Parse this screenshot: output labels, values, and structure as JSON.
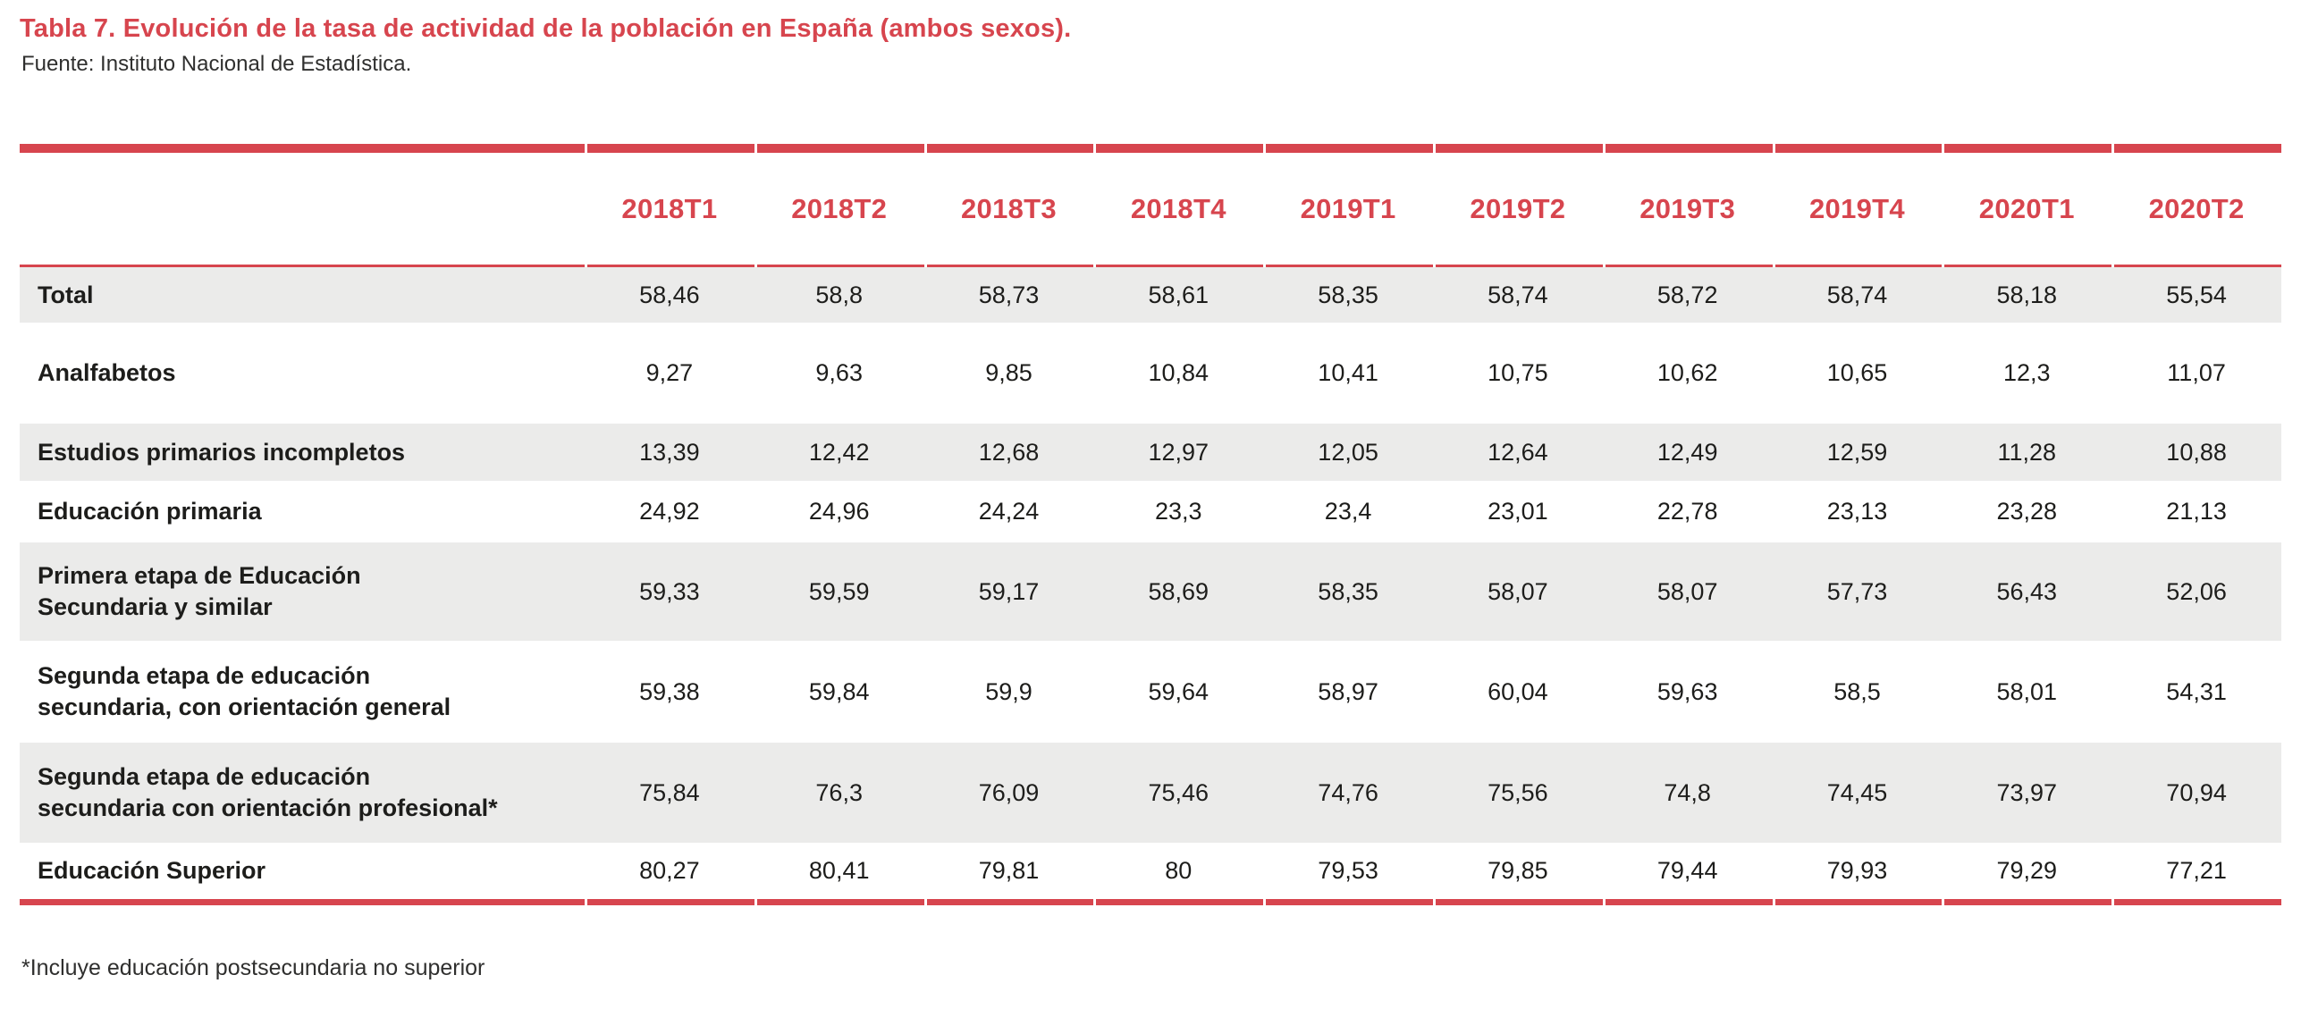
{
  "title": "Tabla 7. Evolución de la tasa de actividad de la población en España (ambos sexos).",
  "source": "Fuente: Instituto Nacional de Estadística.",
  "footnote": "*Incluye educación postsecundaria no superior",
  "colors": {
    "accent_red": "#d7454e",
    "row_stripe": "#ebebea",
    "text": "#1d1d1b"
  },
  "chart_data": {
    "type": "table",
    "title": "Evolución de la tasa de actividad de la población en España (ambos sexos)",
    "columns": [
      "2018T1",
      "2018T2",
      "2018T3",
      "2018T4",
      "2019T1",
      "2019T2",
      "2019T3",
      "2019T4",
      "2020T1",
      "2020T2"
    ],
    "rows": [
      {
        "label": "Total",
        "values": [
          "58,46",
          "58,8",
          "58,73",
          "58,61",
          "58,35",
          "58,74",
          "58,72",
          "58,74",
          "58,18",
          "55,54"
        ]
      },
      {
        "label": "Analfabetos",
        "values": [
          "9,27",
          "9,63",
          "9,85",
          "10,84",
          "10,41",
          "10,75",
          "10,62",
          "10,65",
          "12,3",
          "11,07"
        ]
      },
      {
        "label": "Estudios primarios incompletos",
        "values": [
          "13,39",
          "12,42",
          "12,68",
          "12,97",
          "12,05",
          "12,64",
          "12,49",
          "12,59",
          "11,28",
          "10,88"
        ]
      },
      {
        "label": "Educación primaria",
        "values": [
          "24,92",
          "24,96",
          "24,24",
          "23,3",
          "23,4",
          "23,01",
          "22,78",
          "23,13",
          "23,28",
          "21,13"
        ]
      },
      {
        "label": "Primera etapa de Educación\nSecundaria y similar",
        "values": [
          "59,33",
          "59,59",
          "59,17",
          "58,69",
          "58,35",
          "58,07",
          "58,07",
          "57,73",
          "56,43",
          "52,06"
        ]
      },
      {
        "label": "Segunda etapa de educación\nsecundaria, con orientación general",
        "values": [
          "59,38",
          "59,84",
          "59,9",
          "59,64",
          "58,97",
          "60,04",
          "59,63",
          "58,5",
          "58,01",
          "54,31"
        ]
      },
      {
        "label": "Segunda etapa de educación\nsecundaria con orientación profesional*",
        "values": [
          "75,84",
          "76,3",
          "76,09",
          "75,46",
          "74,76",
          "75,56",
          "74,8",
          "74,45",
          "73,97",
          "70,94"
        ]
      },
      {
        "label": "Educación Superior",
        "values": [
          "80,27",
          "80,41",
          "79,81",
          "80",
          "79,53",
          "79,85",
          "79,44",
          "79,93",
          "79,29",
          "77,21"
        ]
      }
    ]
  }
}
